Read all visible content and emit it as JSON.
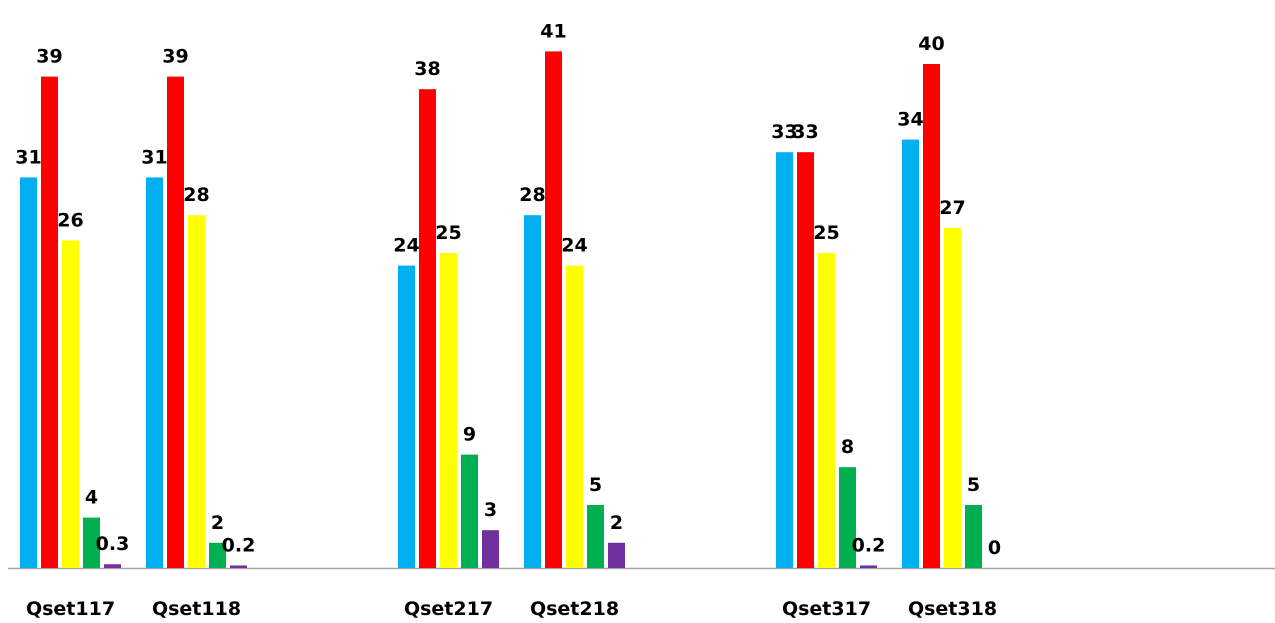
{
  "chart_data": {
    "type": "bar",
    "categories": [
      "Qset117",
      "Qset118",
      null,
      "Qset217",
      "Qset218",
      null,
      "Qset317",
      "Qset318",
      null,
      null
    ],
    "series": [
      {
        "color": "#00b0f0",
        "values": [
          31,
          31,
          null,
          24,
          28,
          null,
          33,
          34,
          null,
          null
        ]
      },
      {
        "color": "#ff0000",
        "values": [
          39,
          39,
          null,
          38,
          41,
          null,
          33,
          40,
          null,
          null
        ]
      },
      {
        "color": "#ffff00",
        "values": [
          26,
          28,
          null,
          25,
          24,
          null,
          25,
          27,
          null,
          null
        ]
      },
      {
        "color": "#00b050",
        "values": [
          4,
          2,
          null,
          9,
          5,
          null,
          8,
          5,
          null,
          null
        ]
      },
      {
        "color": "#7030a0",
        "values": [
          0.3,
          0.2,
          null,
          3,
          2,
          null,
          0.2,
          0,
          null,
          null
        ]
      }
    ],
    "ylim": [
      0,
      45
    ]
  }
}
